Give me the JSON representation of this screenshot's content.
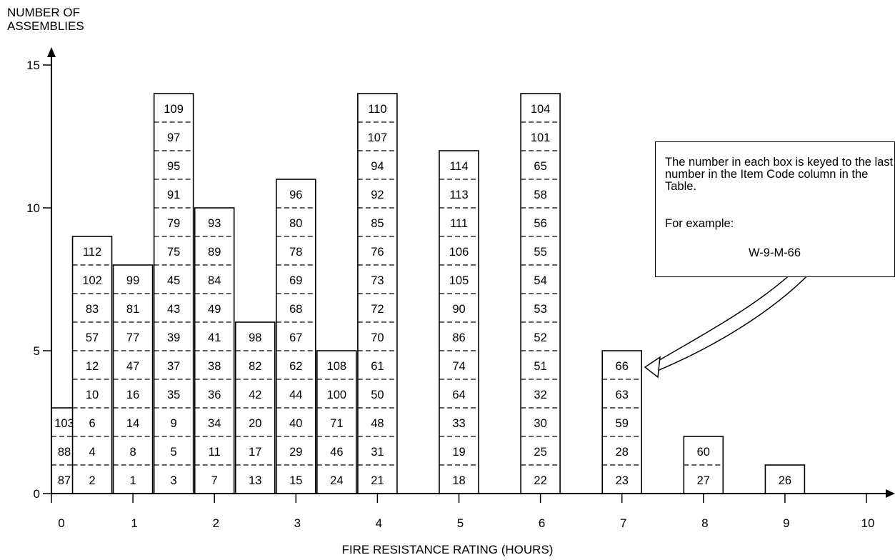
{
  "chart_data": {
    "type": "bar",
    "ylabel": "NUMBER OF\nASSEMBLIES",
    "xlabel": "FIRE RESISTANCE RATING (HOURS)",
    "y_ticks": [
      "0",
      "5",
      "10",
      "15"
    ],
    "x_ticks": [
      "0",
      "1",
      "2",
      "3",
      "4",
      "5",
      "6",
      "7",
      "8",
      "9",
      "10"
    ],
    "xlim": [
      0,
      10
    ],
    "ylim": [
      0,
      15
    ],
    "bars": [
      {
        "x": 0.17,
        "items": [
          "87",
          "88",
          "103"
        ]
      },
      {
        "x": 0.5,
        "items": [
          "2",
          "4",
          "6",
          "10",
          "12",
          "57",
          "83",
          "102",
          "112"
        ]
      },
      {
        "x": 1,
        "items": [
          "1",
          "8",
          "14",
          "16",
          "47",
          "77",
          "81",
          "99"
        ]
      },
      {
        "x": 1.5,
        "items": [
          "3",
          "5",
          "9",
          "35",
          "37",
          "39",
          "43",
          "45",
          "75",
          "79",
          "91",
          "95",
          "97",
          "109"
        ]
      },
      {
        "x": 2,
        "items": [
          "7",
          "11",
          "34",
          "36",
          "38",
          "41",
          "49",
          "84",
          "89",
          "93"
        ]
      },
      {
        "x": 2.5,
        "items": [
          "13",
          "17",
          "20",
          "42",
          "82",
          "98"
        ]
      },
      {
        "x": 3,
        "items": [
          "15",
          "29",
          "40",
          "44",
          "62",
          "67",
          "68",
          "69",
          "78",
          "80",
          "96"
        ]
      },
      {
        "x": 3.5,
        "items": [
          "24",
          "46",
          "71",
          "100",
          "108"
        ]
      },
      {
        "x": 4,
        "items": [
          "21",
          "31",
          "48",
          "50",
          "61",
          "70",
          "72",
          "73",
          "76",
          "85",
          "92",
          "94",
          "107",
          "110"
        ]
      },
      {
        "x": 5,
        "items": [
          "18",
          "19",
          "33",
          "64",
          "74",
          "86",
          "90",
          "105",
          "106",
          "111",
          "113",
          "114"
        ]
      },
      {
        "x": 6,
        "items": [
          "22",
          "25",
          "30",
          "32",
          "51",
          "52",
          "53",
          "54",
          "55",
          "56",
          "58",
          "65",
          "101",
          "104"
        ]
      },
      {
        "x": 7,
        "items": [
          "23",
          "28",
          "59",
          "63",
          "66"
        ]
      },
      {
        "x": 8,
        "items": [
          "27",
          "60"
        ]
      },
      {
        "x": 9,
        "items": [
          "26"
        ]
      }
    ]
  },
  "note": {
    "text": "The number in each box is keyed to the last number in the Item Code column in the Table.",
    "example_label": "For example:",
    "example_code": "W-9-M-66"
  }
}
